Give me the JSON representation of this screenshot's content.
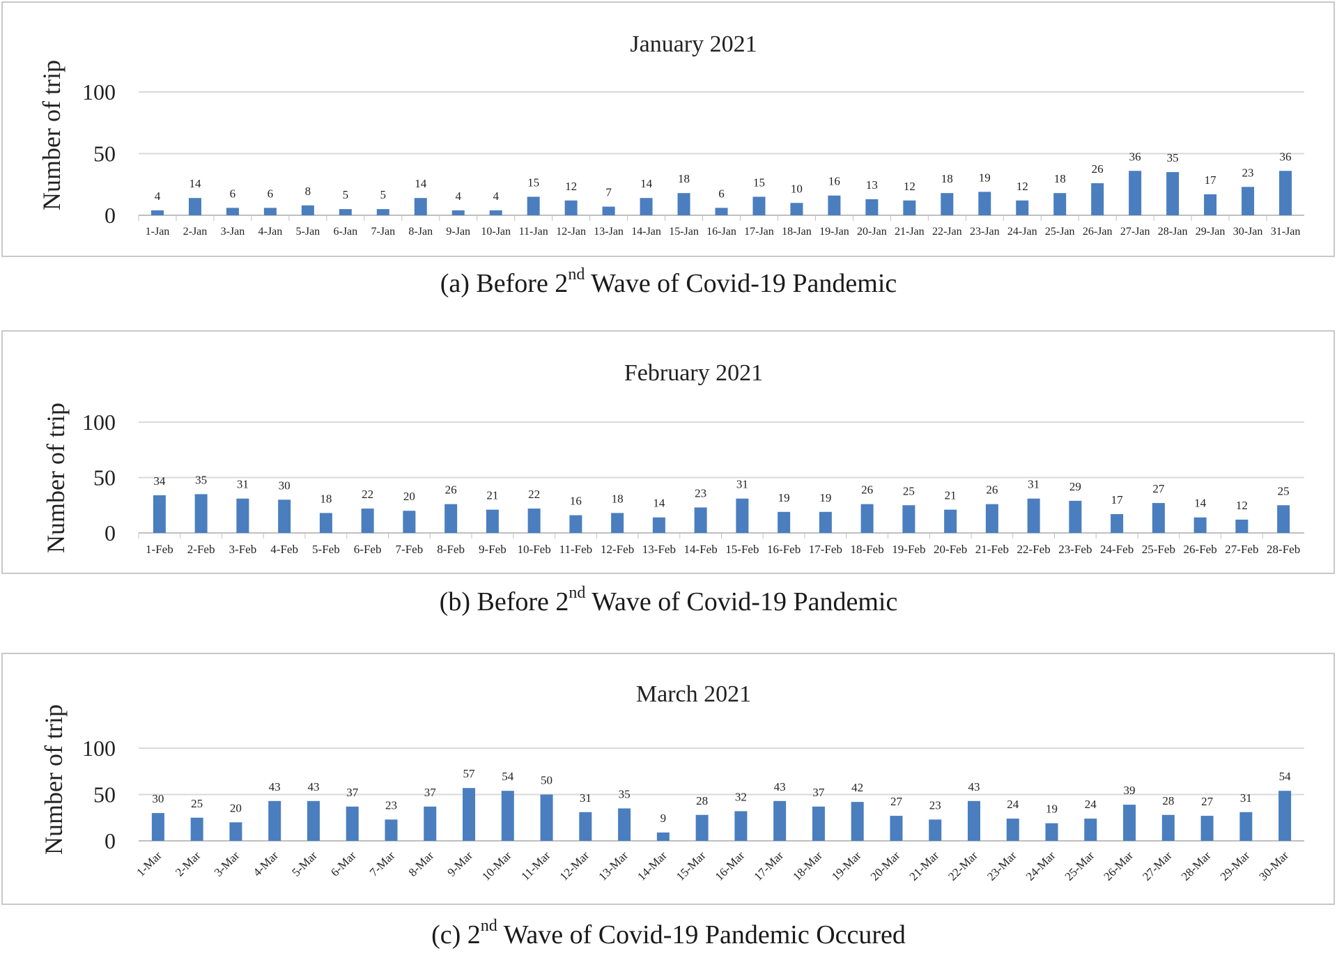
{
  "panels": [
    {
      "caption": {
        "prefix": "(a) Before 2",
        "sup": "nd",
        "suffix": " Wave of Covid-19 Pandemic"
      }
    },
    {
      "caption": {
        "prefix": "(b) Before 2",
        "sup": "nd",
        "suffix": " Wave of Covid-19 Pandemic"
      }
    },
    {
      "caption": {
        "prefix": "(c) 2",
        "sup": "nd",
        "suffix": " Wave of Covid-19 Pandemic Occured"
      }
    }
  ],
  "colors": {
    "bar": "#4a7ebf",
    "grid": "#d9d9d9",
    "frame": "#c8c8c8"
  },
  "chart_data": [
    {
      "type": "bar",
      "title": "January 2021",
      "ylabel": "Number of trip",
      "ylim": [
        0,
        100
      ],
      "yticks": [
        0,
        50,
        100
      ],
      "grid": true,
      "categories": [
        "1-Jan",
        "2-Jan",
        "3-Jan",
        "4-Jan",
        "5-Jan",
        "6-Jan",
        "7-Jan",
        "8-Jan",
        "9-Jan",
        "10-Jan",
        "11-Jan",
        "12-Jan",
        "13-Jan",
        "14-Jan",
        "15-Jan",
        "16-Jan",
        "17-Jan",
        "18-Jan",
        "19-Jan",
        "20-Jan",
        "21-Jan",
        "22-Jan",
        "23-Jan",
        "24-Jan",
        "25-Jan",
        "26-Jan",
        "27-Jan",
        "28-Jan",
        "29-Jan",
        "30-Jan",
        "31-Jan"
      ],
      "values": [
        4,
        14,
        6,
        6,
        8,
        5,
        5,
        14,
        4,
        4,
        15,
        12,
        7,
        14,
        18,
        6,
        15,
        10,
        16,
        13,
        12,
        18,
        19,
        12,
        18,
        26,
        36,
        35,
        17,
        23,
        36
      ]
    },
    {
      "type": "bar",
      "title": "February 2021",
      "ylabel": "Number of trip",
      "ylim": [
        0,
        100
      ],
      "yticks": [
        0,
        50,
        100
      ],
      "grid": true,
      "categories": [
        "1-Feb",
        "2-Feb",
        "3-Feb",
        "4-Feb",
        "5-Feb",
        "6-Feb",
        "7-Feb",
        "8-Feb",
        "9-Feb",
        "10-Feb",
        "11-Feb",
        "12-Feb",
        "13-Feb",
        "14-Feb",
        "15-Feb",
        "16-Feb",
        "17-Feb",
        "18-Feb",
        "19-Feb",
        "20-Feb",
        "21-Feb",
        "22-Feb",
        "23-Feb",
        "24-Feb",
        "25-Feb",
        "26-Feb",
        "27-Feb",
        "28-Feb"
      ],
      "values": [
        34,
        35,
        31,
        30,
        18,
        22,
        20,
        26,
        21,
        22,
        16,
        18,
        14,
        23,
        31,
        19,
        19,
        26,
        25,
        21,
        26,
        31,
        29,
        17,
        27,
        14,
        12,
        25
      ]
    },
    {
      "type": "bar",
      "title": "March 2021",
      "ylabel": "Number of trip",
      "ylim": [
        0,
        100
      ],
      "yticks": [
        0,
        50,
        100
      ],
      "grid": true,
      "categories": [
        "1-Mar",
        "2-Mar",
        "3-Mar",
        "4-Mar",
        "5-Mar",
        "6-Mar",
        "7-Mar",
        "8-Mar",
        "9-Mar",
        "10-Mar",
        "11-Mar",
        "12-Mar",
        "13-Mar",
        "14-Mar",
        "15-Mar",
        "16-Mar",
        "17-Mar",
        "18-Mar",
        "19-Mar",
        "20-Mar",
        "21-Mar",
        "22-Mar",
        "23-Mar",
        "24-Mar",
        "25-Mar",
        "26-Mar",
        "27-Mar",
        "28-Mar",
        "29-Mar",
        "30-Mar"
      ],
      "values": [
        30,
        25,
        20,
        43,
        43,
        37,
        23,
        37,
        57,
        54,
        50,
        31,
        35,
        9,
        28,
        32,
        43,
        37,
        42,
        27,
        23,
        43,
        24,
        19,
        24,
        39,
        28,
        27,
        31,
        54
      ]
    }
  ]
}
